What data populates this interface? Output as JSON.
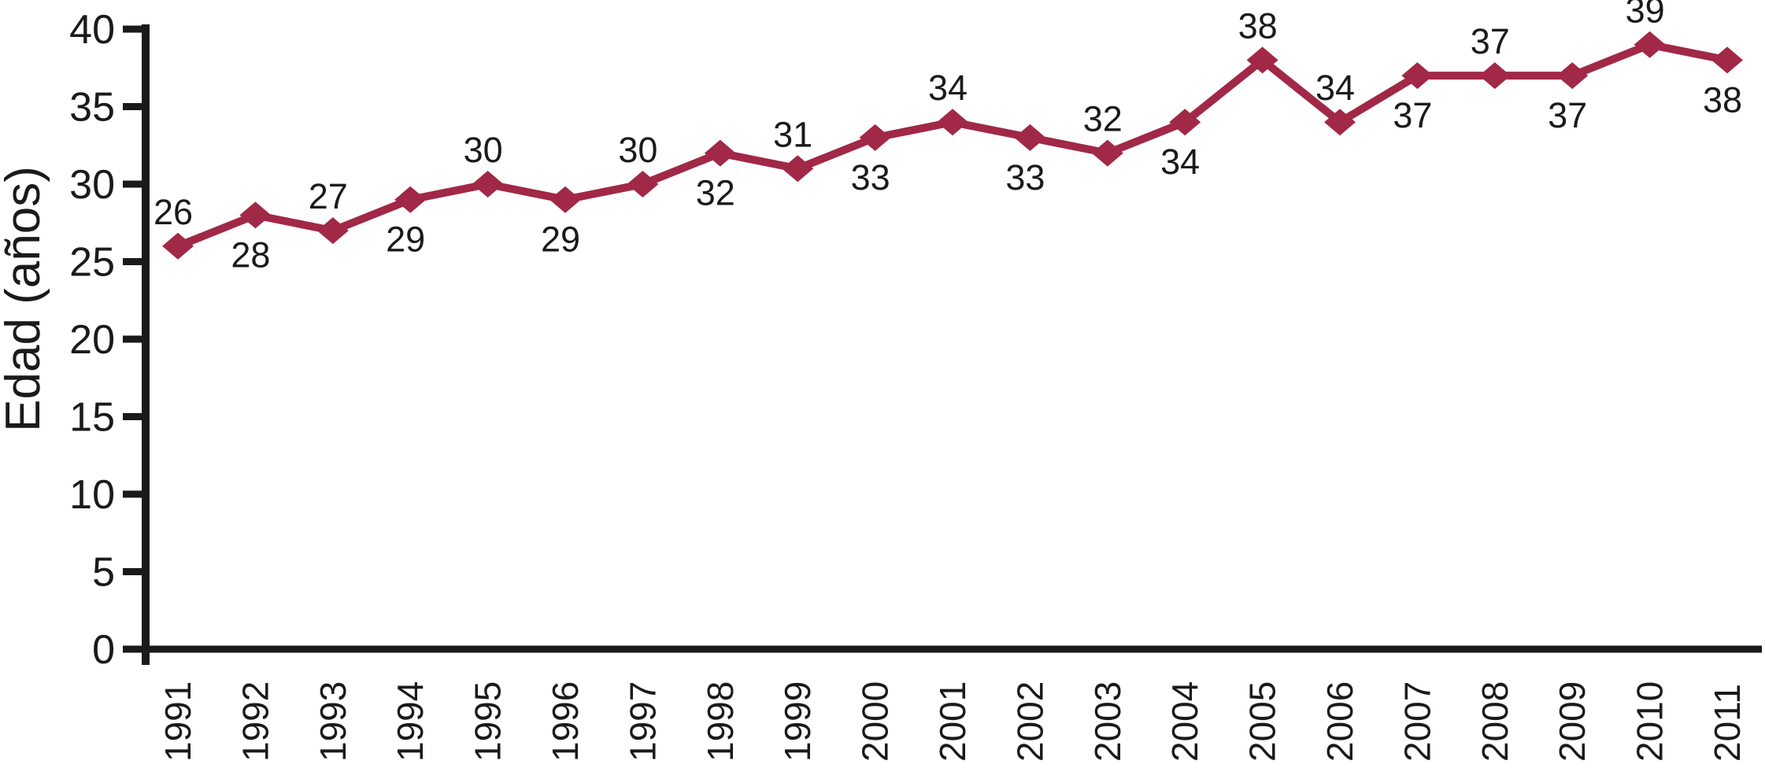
{
  "chart_data": {
    "type": "line",
    "x": [
      "1991",
      "1992",
      "1993",
      "1994",
      "1995",
      "1996",
      "1997",
      "1998",
      "1999",
      "2000",
      "2001",
      "2002",
      "2003",
      "2004",
      "2005",
      "2006",
      "2007",
      "2008",
      "2009",
      "2010",
      "2011"
    ],
    "series": [
      {
        "name": "Edad",
        "values": [
          26,
          28,
          27,
          29,
          30,
          29,
          30,
          32,
          31,
          33,
          34,
          33,
          32,
          34,
          38,
          34,
          37,
          37,
          37,
          39,
          38
        ]
      }
    ],
    "value_label_positions": [
      "above",
      "below",
      "above",
      "below",
      "above",
      "below",
      "above",
      "below",
      "above",
      "below",
      "above",
      "below",
      "above",
      "below",
      "above",
      "above",
      "below",
      "above",
      "below",
      "above",
      "below"
    ],
    "ylabel": "Edad (años)",
    "xlabel": "",
    "title": "",
    "ylim": [
      0,
      40
    ],
    "yticks": [
      0,
      5,
      10,
      15,
      20,
      25,
      30,
      35,
      40
    ],
    "grid": false,
    "legend": "none",
    "marker": "diamond",
    "line_color": "#A12847",
    "axis_color": "#1A1A1A",
    "label_color": "#1A1A1A",
    "background": "#FFFFFF"
  }
}
